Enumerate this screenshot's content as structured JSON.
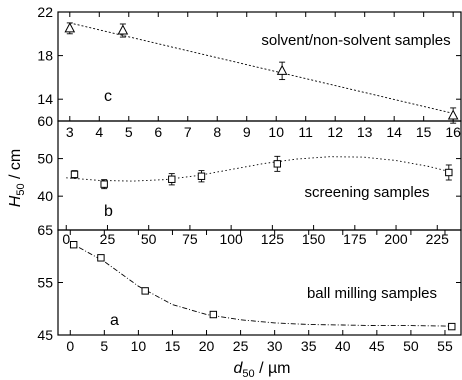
{
  "chart_data": [
    {
      "type": "scatter",
      "panel_letter": "c",
      "annotation": "solvent/non-solvent samples",
      "x_ticks": [
        "3",
        "4",
        "5",
        "6",
        "7",
        "8",
        "9",
        "10",
        "11",
        "12",
        "13",
        "14",
        "15",
        "16"
      ],
      "xlim": [
        2.6,
        16.3
      ],
      "y_ticks": [
        "22",
        "18",
        "14"
      ],
      "ylim": [
        12.0,
        22.0
      ],
      "marker": "triangle",
      "series": [
        {
          "x": [
            3.0,
            4.8,
            10.2,
            16.0
          ],
          "y": [
            20.5,
            20.3,
            16.6,
            12.5
          ],
          "err": [
            0.5,
            0.6,
            0.8,
            0.7
          ]
        }
      ],
      "fit": {
        "style": "dotted-linear",
        "x": [
          3.0,
          16.0
        ],
        "y": [
          21.0,
          12.7
        ]
      },
      "grid": false
    },
    {
      "type": "scatter",
      "panel_letter": "b",
      "annotation": "screening samples",
      "x_ticks": [
        "0",
        "25",
        "50",
        "75",
        "100",
        "125",
        "150",
        "175",
        "200",
        "225"
      ],
      "xlim": [
        -5,
        240
      ],
      "y_ticks": [
        "60",
        "50",
        "40"
      ],
      "ylim": [
        31.0,
        60.0
      ],
      "marker": "square",
      "series": [
        {
          "x": [
            5,
            23,
            64,
            82,
            128,
            232
          ],
          "y": [
            45.8,
            43.2,
            44.5,
            45.3,
            48.6,
            46.3
          ],
          "err": [
            1.0,
            1.2,
            1.5,
            1.5,
            2.0,
            2.0
          ]
        }
      ],
      "fit": {
        "style": "dotted-curve",
        "x": [
          0,
          20,
          40,
          60,
          80,
          100,
          120,
          140,
          160,
          180,
          200,
          220,
          232
        ],
        "y": [
          44.9,
          44.2,
          44.0,
          44.4,
          45.5,
          47.1,
          48.7,
          49.9,
          50.5,
          50.4,
          49.5,
          47.9,
          46.6
        ]
      },
      "grid": false
    },
    {
      "type": "line",
      "panel_letter": "a",
      "annotation": "ball milling samples",
      "x_ticks": [
        "0",
        "5",
        "10",
        "15",
        "20",
        "25",
        "30",
        "35",
        "40",
        "45",
        "50",
        "55"
      ],
      "xlim": [
        -1.8,
        57.5
      ],
      "y_ticks": [
        "65",
        "55",
        "45"
      ],
      "ylim": [
        45.0,
        65.0
      ],
      "marker": "square",
      "series": [
        {
          "x": [
            0.5,
            4.5,
            11.0,
            21.0,
            56.0
          ],
          "y": [
            62.2,
            59.7,
            53.4,
            48.9,
            46.6
          ],
          "err": [
            0.3,
            0.4,
            0.5,
            0.5,
            0.5
          ]
        }
      ],
      "fit": {
        "style": "dashdot-curve",
        "x": [
          0,
          5,
          10,
          15,
          20,
          25,
          30,
          35,
          40,
          45,
          50,
          56
        ],
        "y": [
          62.6,
          59.0,
          54.3,
          50.8,
          48.9,
          47.9,
          47.3,
          47.0,
          46.9,
          46.8,
          46.8,
          46.7
        ]
      },
      "grid": false
    }
  ],
  "axes": {
    "y_title_main": "H",
    "y_title_sub": "50",
    "y_title_unit": " / cm",
    "x_title_main": "d",
    "x_title_sub": "50",
    "x_title_unit": " / µm"
  }
}
